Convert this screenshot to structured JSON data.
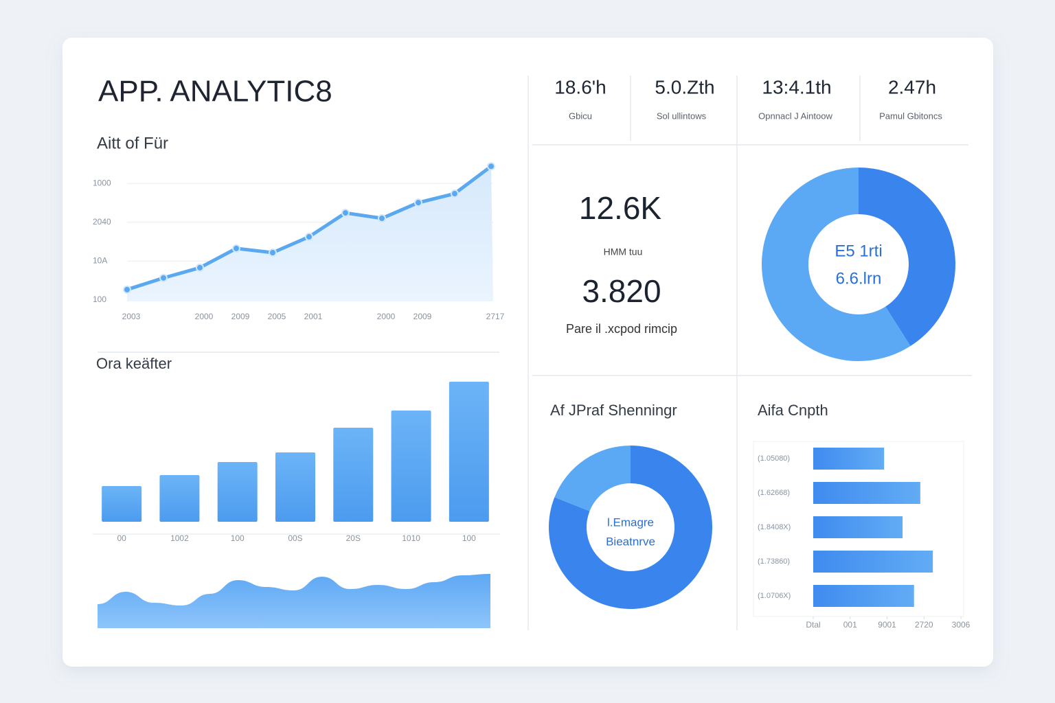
{
  "title": "APP. ANALYTIC8",
  "kpis": [
    {
      "value": "18.6'h",
      "label": "Gbicu"
    },
    {
      "value": "5.0.Zth",
      "label": "Sol ullintows"
    },
    {
      "value": "13:4.1th",
      "label": "Opnnacl J Aintoow"
    },
    {
      "value": "2.47h",
      "label": "Pamul Gbitoncs"
    }
  ],
  "summary": {
    "primary": "12.6K",
    "primary_label": "HMM tuu",
    "secondary": "3.820",
    "secondary_label": "Pare il .xcpod rimcip"
  },
  "chart_data": [
    {
      "type": "line",
      "title": "Aitt of Für",
      "categories": [
        "2003",
        null,
        "2000",
        "2009",
        "2005",
        "2001",
        null,
        "2000",
        "2009",
        null,
        "2717"
      ],
      "values": [
        316,
        391,
        457,
        581,
        554,
        656,
        810,
        775,
        876,
        934,
        1110
      ],
      "color": "#5aa9f0",
      "ylim": [
        240,
        1120
      ],
      "yticks": [
        {
          "value": 250,
          "label": "100"
        },
        {
          "value": 500,
          "label": "10A"
        },
        {
          "value": 750,
          "label": "2040"
        },
        1000
      ],
      "grid": true
    },
    {
      "type": "bar",
      "title": "Ora keäfter",
      "categories": [
        "00",
        "1002",
        "100",
        "00S",
        "20S",
        "1010",
        "100"
      ],
      "values": [
        52,
        68,
        87,
        101,
        137,
        162,
        204
      ],
      "color": "#5ba6f3",
      "ylim": [
        0,
        220
      ]
    },
    {
      "type": "area",
      "values": [
        35,
        53,
        37,
        33,
        50,
        70,
        60,
        55,
        75,
        57,
        63,
        57,
        67,
        77,
        79
      ],
      "color": "#6db2f6",
      "ylim": [
        0,
        80
      ]
    },
    {
      "type": "donut",
      "center_labels": [
        "E5 1rti",
        "6.6.lrn"
      ],
      "values": [
        41,
        59
      ],
      "colors": [
        "#3a84ee",
        "#5ba9f4"
      ]
    },
    {
      "type": "donut",
      "title": "Af JPraf Shenningr",
      "center_labels": [
        "l.Emagre",
        "Bieatnrve"
      ],
      "values": [
        81,
        19
      ],
      "colors": [
        "#3a84ee",
        "#5ba9f4"
      ]
    },
    {
      "type": "hbar",
      "title": "Aifa Cnpth",
      "categories": [
        "(1.05080)",
        "(1.62668)",
        "(1.8408X)",
        "(1.73860)",
        "(1.0706X)"
      ],
      "values": [
        1.92,
        2.9,
        2.42,
        3.24,
        2.73
      ],
      "color": "#4b96f1",
      "xlim": [
        0,
        4
      ],
      "xticks": [
        {
          "value": 0,
          "label": "Dtal"
        },
        {
          "value": 1,
          "label": "001"
        },
        {
          "value": 2,
          "label": "9001"
        },
        {
          "value": 3,
          "label": "2720"
        },
        {
          "value": 4,
          "label": "3006"
        }
      ]
    }
  ]
}
